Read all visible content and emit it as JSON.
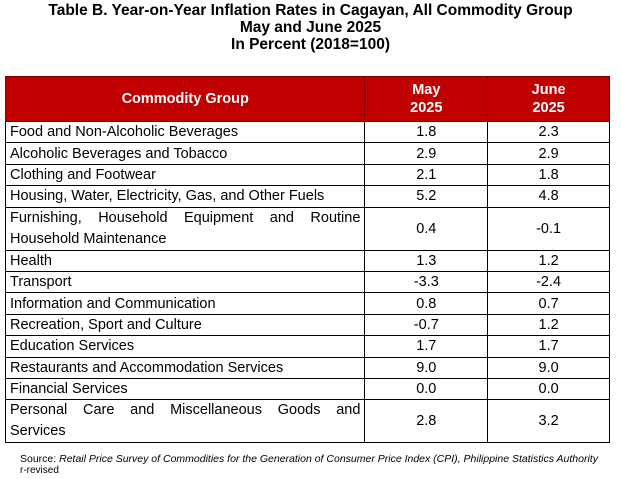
{
  "title": {
    "line1": "Table B. Year-on-Year Inflation Rates in Cagayan, All Commodity Group",
    "line2": "May and June 2025",
    "line3": "In Percent (2018=100)"
  },
  "table": {
    "headers": {
      "group": "Commodity Group",
      "col1_month": "May",
      "col1_year": "2025",
      "col2_month": "June",
      "col2_year": "2025"
    },
    "rows": [
      {
        "group": "Food and Non-Alcoholic Beverages",
        "may": "1.8",
        "june": "2.3"
      },
      {
        "group": "Alcoholic Beverages and Tobacco",
        "may": "2.9",
        "june": "2.9"
      },
      {
        "group": "Clothing and Footwear",
        "may": "2.1",
        "june": "1.8"
      },
      {
        "group": "Housing, Water, Electricity, Gas, and Other Fuels",
        "may": "5.2",
        "june": "4.8"
      },
      {
        "group": "Furnishing, Household Equipment and Routine Household Maintenance",
        "may": "0.4",
        "june": "-0.1"
      },
      {
        "group": "Health",
        "may": "1.3",
        "june": "1.2"
      },
      {
        "group": "Transport",
        "may": "-3.3",
        "june": "-2.4"
      },
      {
        "group": "Information and Communication",
        "may": "0.8",
        "june": "0.7"
      },
      {
        "group": "Recreation, Sport and Culture",
        "may": "-0.7",
        "june": "1.2"
      },
      {
        "group": "Education Services",
        "may": "1.7",
        "june": "1.7"
      },
      {
        "group": "Restaurants and Accommodation Services",
        "may": "9.0",
        "june": "9.0"
      },
      {
        "group": "Financial Services",
        "may": "0.0",
        "june": "0.0"
      },
      {
        "group": "Personal Care and Miscellaneous Goods and Services",
        "may": "2.8",
        "june": "3.2"
      }
    ]
  },
  "source": {
    "label": "Source: ",
    "text": "Retail Price Survey of Commodities for the Generation of Consumer Price Index (CPI), Philippine Statistics Authority"
  },
  "footnote": "r-revised",
  "colors": {
    "header_bg": "#c00000",
    "header_text": "#ffffff"
  }
}
